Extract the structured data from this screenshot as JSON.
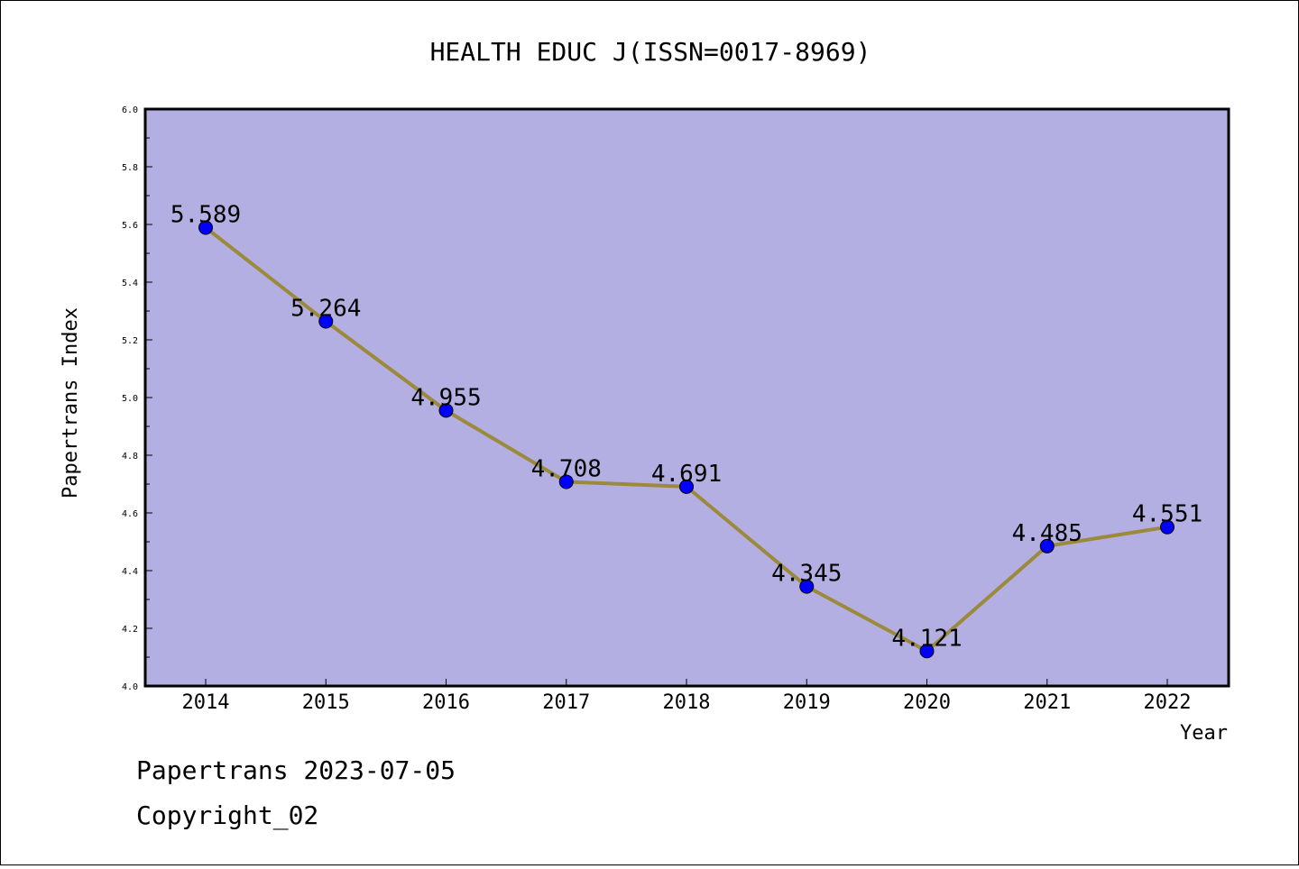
{
  "chart_data": {
    "type": "line",
    "title": "HEALTH EDUC J(ISSN=0017-8969)",
    "xlabel": "Year",
    "ylabel": "Papertrans Index",
    "categories": [
      "2014",
      "2015",
      "2016",
      "2017",
      "2018",
      "2019",
      "2020",
      "2021",
      "2022"
    ],
    "series": [
      {
        "values": [
          5.589,
          5.264,
          4.955,
          4.708,
          4.691,
          4.345,
          4.121,
          4.485,
          4.551
        ],
        "data_labels": [
          "5.589",
          "5.264",
          "4.955",
          "4.708",
          "4.691",
          "4.345",
          "4.121",
          "4.485",
          "4.551"
        ]
      }
    ],
    "yticks": [
      "4.0",
      "4.2",
      "4.4",
      "4.6",
      "4.8",
      "5.0",
      "5.2",
      "5.4",
      "5.6",
      "5.8",
      "6.0"
    ],
    "ylim": [
      4.0,
      6.0
    ],
    "grid": false,
    "colors": {
      "plot_background": "#b4afe2",
      "line": "#9b8a3b",
      "marker": "#0000ff"
    }
  },
  "footer": {
    "line1": "Papertrans 2023-07-05",
    "line2": "Copyright_02"
  }
}
